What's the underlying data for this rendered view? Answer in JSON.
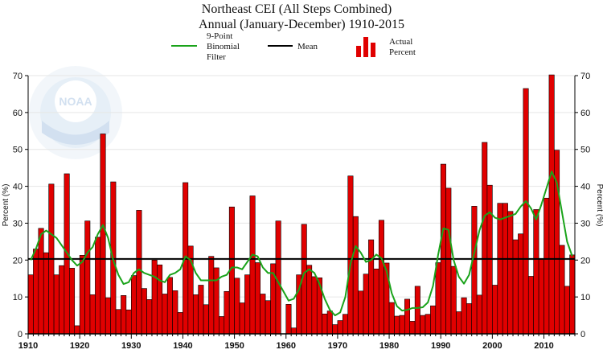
{
  "chart_data": {
    "type": "bar",
    "title": "Northeast CEI (All Steps Combined)",
    "subtitle": "Annual (January-December) 1910-2015",
    "ylabel": "Percent (%)",
    "ylabel_right": "Percent (%)",
    "xlim": [
      1910,
      2015
    ],
    "ylim": [
      0,
      70
    ],
    "y_ticks": [
      0,
      10,
      20,
      30,
      40,
      50,
      60,
      70
    ],
    "x_ticks": [
      1910,
      1920,
      1930,
      1940,
      1950,
      1960,
      1970,
      1980,
      1990,
      2000,
      2010
    ],
    "grid": true,
    "legend_placement": "top",
    "legend": {
      "filter_label": [
        "9-Point",
        "Binomial",
        "Filter"
      ],
      "mean_label": "Mean",
      "actual_label": [
        "Actual",
        "Percent"
      ]
    },
    "mean": 20.3,
    "colors": {
      "bars": "#e00000",
      "filter": "#1aa31a",
      "mean": "#000000"
    },
    "years": [
      1910,
      1911,
      1912,
      1913,
      1914,
      1915,
      1916,
      1917,
      1918,
      1919,
      1920,
      1921,
      1922,
      1923,
      1924,
      1925,
      1926,
      1927,
      1928,
      1929,
      1930,
      1931,
      1932,
      1933,
      1934,
      1935,
      1936,
      1937,
      1938,
      1939,
      1940,
      1941,
      1942,
      1943,
      1944,
      1945,
      1946,
      1947,
      1948,
      1949,
      1950,
      1951,
      1952,
      1953,
      1954,
      1955,
      1956,
      1957,
      1958,
      1959,
      1960,
      1961,
      1962,
      1963,
      1964,
      1965,
      1966,
      1967,
      1968,
      1969,
      1970,
      1971,
      1972,
      1973,
      1974,
      1975,
      1976,
      1977,
      1978,
      1979,
      1980,
      1981,
      1982,
      1983,
      1984,
      1985,
      1986,
      1987,
      1988,
      1989,
      1990,
      1991,
      1992,
      1993,
      1994,
      1995,
      1996,
      1997,
      1998,
      1999,
      2000,
      2001,
      2002,
      2003,
      2004,
      2005,
      2006,
      2007,
      2008,
      2009,
      2010,
      2011,
      2012,
      2013,
      2014,
      2015
    ],
    "values": [
      16,
      23,
      28.6,
      22,
      40.6,
      16,
      18.5,
      43.4,
      17.8,
      2.2,
      21.3,
      30.6,
      10.6,
      26.2,
      54.2,
      9.8,
      41.2,
      6.6,
      10.4,
      6.5,
      15.8,
      33.5,
      12.3,
      9.3,
      20,
      18.7,
      10.8,
      15.3,
      11.7,
      5.8,
      41,
      23.8,
      10.6,
      13.2,
      7.9,
      21,
      17.9,
      4.7,
      11.5,
      34.4,
      15.1,
      8.4,
      16,
      37.4,
      19.3,
      10.8,
      9,
      19,
      30.6,
      0,
      8,
      1.6,
      16,
      29.7,
      18.6,
      15.5,
      15.2,
      5.4,
      6.2,
      2.5,
      3.6,
      5.3,
      42.8,
      31.8,
      11.6,
      16.2,
      25.5,
      17.6,
      30.8,
      19.2,
      8.5,
      4.8,
      5,
      9.4,
      3.4,
      12.9,
      5,
      5.3,
      7.6,
      19.3,
      46,
      39.5,
      18.3,
      6,
      9.8,
      8.2,
      34.6,
      10.5,
      51.9,
      40.3,
      13.2,
      35.4,
      35.4,
      33.2,
      25.5,
      27.1,
      66.5,
      15.6,
      33.7,
      20.2,
      36.8,
      70.2,
      49.8,
      24,
      12.9,
      21.4
    ],
    "filter": [
      20,
      23,
      27,
      28,
      27,
      26,
      24,
      22,
      20,
      18.5,
      19.5,
      22,
      23.5,
      27,
      29.5,
      26,
      20,
      16,
      13.5,
      14,
      16.5,
      17.5,
      16.5,
      16,
      15.5,
      14.5,
      14,
      16,
      16.5,
      17.5,
      21,
      20,
      16.5,
      14.5,
      14.5,
      14.5,
      14.5,
      15.5,
      16,
      18,
      18,
      17.5,
      19.5,
      21.5,
      21,
      18,
      16.5,
      16.5,
      14,
      11.5,
      9,
      9.5,
      12,
      16.5,
      17.5,
      16.5,
      13.5,
      9.5,
      6.5,
      5,
      5.8,
      10,
      19,
      23.8,
      22,
      19.5,
      20,
      21.5,
      20.5,
      17,
      11,
      7.5,
      6.3,
      6.5,
      7,
      7,
      7.2,
      8.5,
      13,
      21.5,
      28.6,
      28.2,
      20,
      15.5,
      13.6,
      16,
      22,
      28,
      32,
      33,
      31.5,
      31,
      31.5,
      32,
      32.5,
      34.5,
      36,
      34,
      31,
      35,
      39.5,
      44,
      41,
      33,
      25,
      21
    ]
  }
}
